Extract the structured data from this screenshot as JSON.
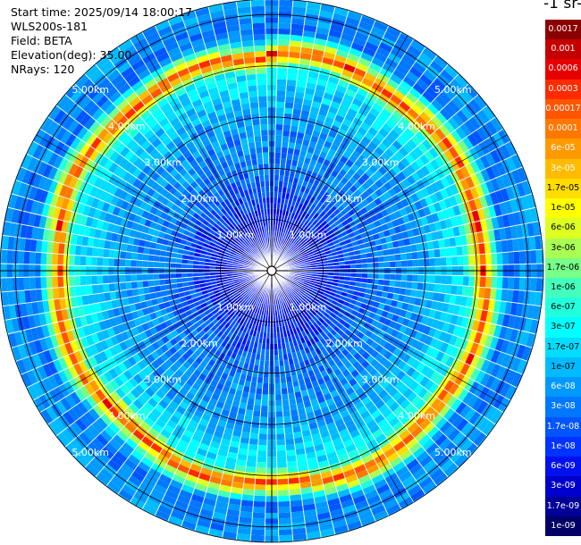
{
  "header": {
    "start_time": "Start time: 2025/09/14 18:00:17",
    "instrument": "WLS200s-181",
    "field": "Field: BETA",
    "elevation": "Elevation(deg): 35.00",
    "nrays": "NRays: 120"
  },
  "colorbar": {
    "title": "-1 sr-",
    "labels": [
      "0.0017",
      "0.001",
      "0.0006",
      "0.0003",
      "0.00017",
      "0.0001",
      "6e-05",
      "3e-05",
      "1.7e-05",
      "1e-05",
      "6e-06",
      "3e-06",
      "1.7e-06",
      "1e-06",
      "6e-07",
      "3e-07",
      "1.7e-07",
      "1e-07",
      "6e-08",
      "3e-08",
      "1.7e-08",
      "1e-08",
      "6e-09",
      "3e-09",
      "1.7e-09",
      "1e-09"
    ],
    "colors": [
      "#8b0000",
      "#c40000",
      "#e80000",
      "#ff2a00",
      "#ff5500",
      "#ff7700",
      "#ff9900",
      "#ffbb00",
      "#ffdd00",
      "#ffff00",
      "#ddff22",
      "#aaff55",
      "#77ff88",
      "#44ffbb",
      "#22ffdd",
      "#00ffff",
      "#00ddff",
      "#00bbff",
      "#0099ff",
      "#0077ff",
      "#0055ff",
      "#0033ff",
      "#0011ee",
      "#0000cc",
      "#000099",
      "#000066"
    ]
  },
  "chart_data": {
    "type": "heatmap",
    "projection": "polar PPI",
    "field": "BETA",
    "elevation_deg": 35.0,
    "n_rays": 120,
    "range_rings_km": [
      1,
      2,
      3,
      4,
      5
    ],
    "max_range_km": 5.3,
    "range_labels": [
      "1.00km",
      "2.00km",
      "3.00km",
      "4.00km",
      "5.00km"
    ],
    "color_scale": "log",
    "value_range": [
      1e-09,
      0.0017
    ],
    "radial_profile": [
      {
        "range_km": 0.0,
        "value": 3e-09
      },
      {
        "range_km": 1.0,
        "value": 6e-09
      },
      {
        "range_km": 2.0,
        "value": 3e-08
      },
      {
        "range_km": 3.0,
        "value": 6e-08
      },
      {
        "range_km": 3.9,
        "value": 3e-07
      },
      {
        "range_km": 4.1,
        "value": 3e-05
      },
      {
        "range_km": 4.2,
        "value": 0.0003
      },
      {
        "range_km": 4.3,
        "value": 1e-05
      },
      {
        "range_km": 4.6,
        "value": 3e-08
      },
      {
        "range_km": 5.3,
        "value": 6e-08
      }
    ]
  }
}
